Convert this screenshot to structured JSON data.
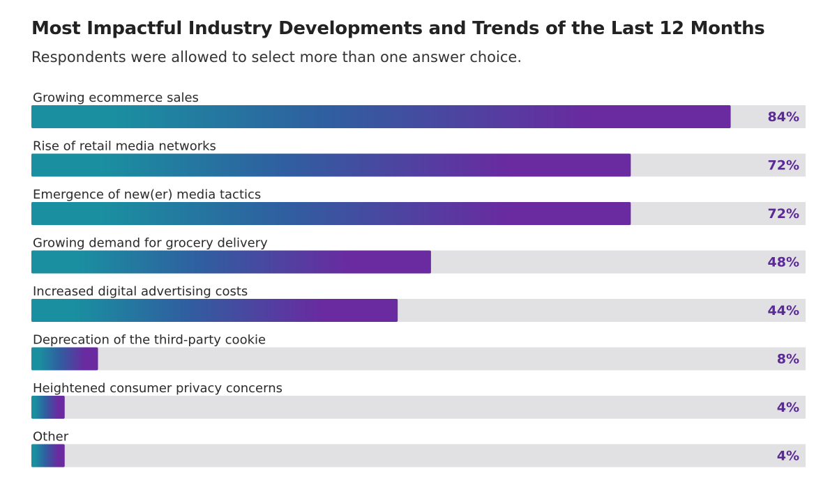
{
  "chart_data": {
    "type": "bar",
    "orientation": "horizontal",
    "title": "Most Impactful Industry Developments and Trends of the Last 12 Months",
    "subtitle": "Respondents were allowed to select more than one answer choice.",
    "categories": [
      "Growing ecommerce sales",
      "Rise of retail media networks",
      "Emergence of new(er) media tactics",
      "Growing demand for grocery delivery",
      "Increased digital advertising costs",
      "Deprecation of the third-party cookie",
      "Heightened consumer privacy concerns",
      "Other"
    ],
    "values": [
      84,
      72,
      72,
      48,
      44,
      8,
      4,
      4
    ],
    "value_labels": [
      "84%",
      "72%",
      "72%",
      "48%",
      "44%",
      "8%",
      "4%",
      "4%"
    ],
    "xlim": [
      0,
      100
    ],
    "unit": "%",
    "grid": false,
    "legend": "none"
  },
  "colors": {
    "gradient_start": "#1a8fa0",
    "gradient_mid": "#2f5fa0",
    "gradient_end": "#6a2aa0",
    "track": "#e1e1e4",
    "value_text": "#5b2a96"
  }
}
